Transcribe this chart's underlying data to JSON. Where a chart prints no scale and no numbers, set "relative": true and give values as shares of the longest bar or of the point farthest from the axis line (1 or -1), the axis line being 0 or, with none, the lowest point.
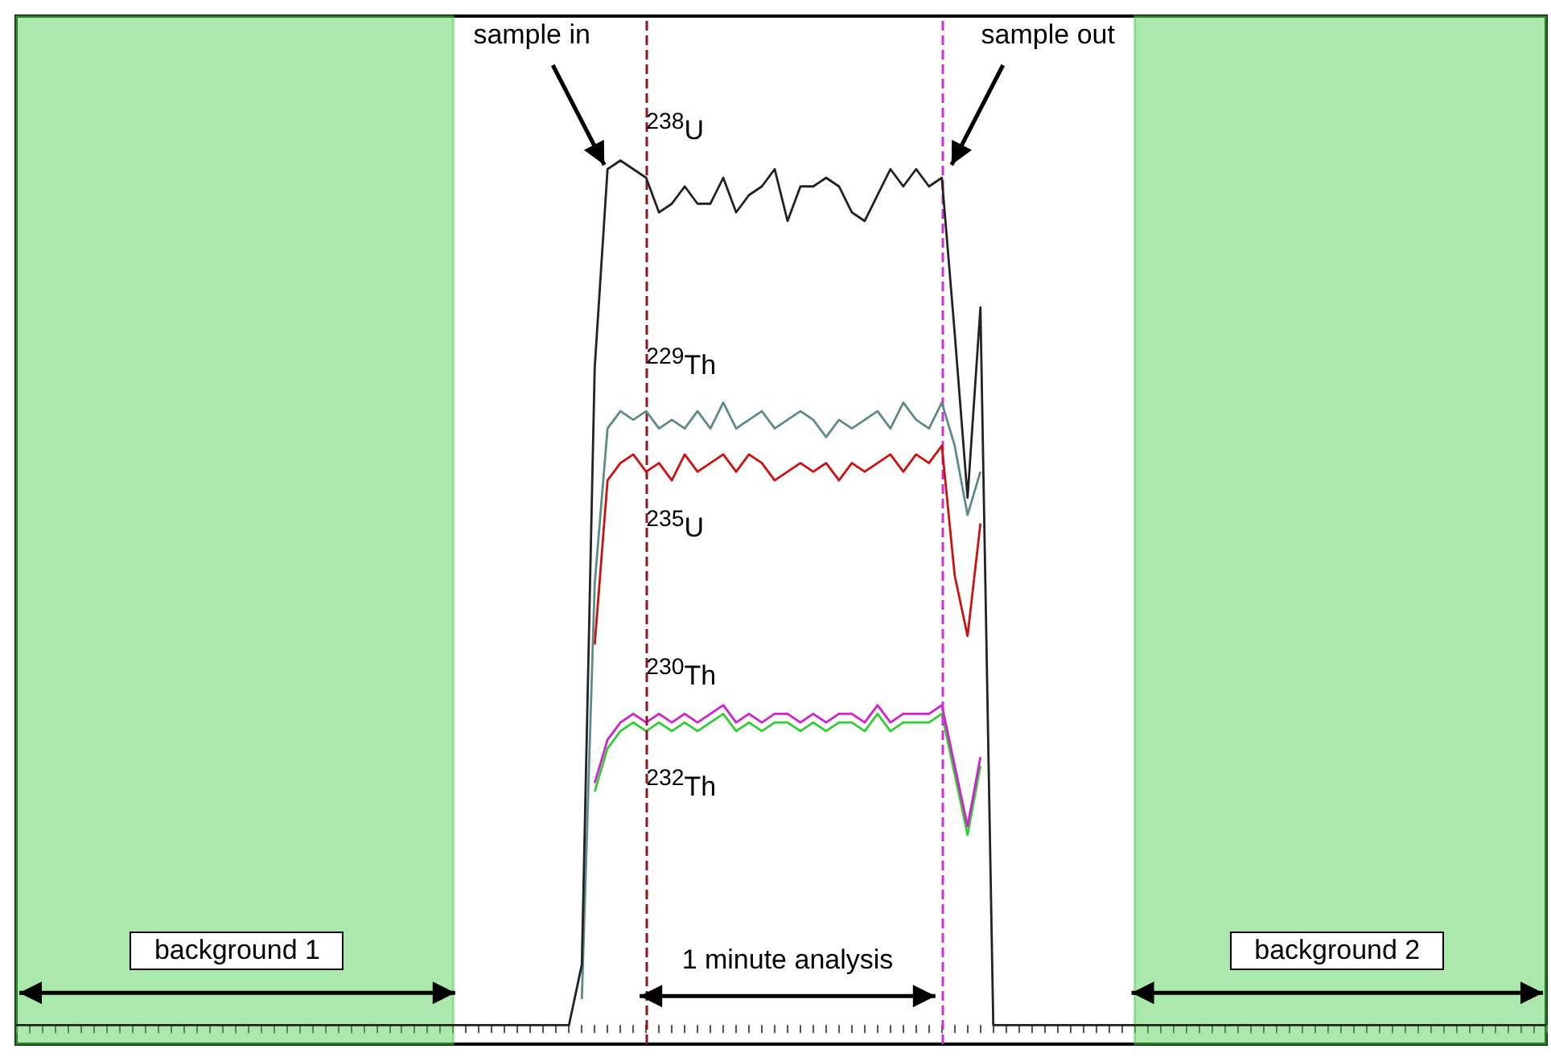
{
  "chart_data": {
    "type": "line",
    "relative": true,
    "categories": [
      null,
      null,
      null,
      null,
      null,
      null,
      null,
      null,
      null,
      null,
      null,
      null,
      null,
      null,
      null,
      null,
      null,
      null,
      null,
      null,
      null,
      null,
      null,
      null,
      null,
      null,
      null,
      null,
      null,
      null,
      null,
      null,
      null,
      null,
      null,
      null,
      null,
      null,
      null,
      null,
      null,
      null,
      null,
      null,
      null,
      null,
      null,
      null,
      null,
      null,
      null,
      null,
      null,
      null,
      null,
      null,
      null,
      null,
      null,
      null,
      null,
      null,
      null,
      null,
      null,
      null,
      null,
      null,
      null,
      null,
      null,
      null,
      null,
      null,
      null,
      null,
      null,
      null,
      null,
      null,
      null,
      null,
      null,
      null,
      null,
      null,
      null,
      null,
      null,
      null,
      null,
      null,
      null,
      null,
      null,
      null,
      null,
      null,
      null,
      null,
      null,
      null,
      null,
      null,
      null,
      null,
      null,
      null,
      null,
      null,
      null,
      null,
      null,
      null,
      null,
      null,
      null,
      null,
      null,
      null
    ],
    "series": [
      {
        "name": "$^{232}$Th",
        "color": "#33cc33",
        "values": [
          null,
          null,
          null,
          null,
          null,
          null,
          null,
          null,
          null,
          null,
          null,
          null,
          null,
          null,
          null,
          null,
          null,
          null,
          null,
          null,
          null,
          null,
          null,
          null,
          null,
          null,
          null,
          null,
          null,
          null,
          null,
          null,
          null,
          null,
          null,
          null,
          null,
          null,
          null,
          null,
          null,
          null,
          null,
          null,
          null,
          0.27,
          0.32,
          0.34,
          0.35,
          0.34,
          0.35,
          0.34,
          0.35,
          0.34,
          0.35,
          0.36,
          0.34,
          0.35,
          0.34,
          0.35,
          0.35,
          0.34,
          0.35,
          0.34,
          0.35,
          0.35,
          0.34,
          0.36,
          0.34,
          0.35,
          0.35,
          0.35,
          0.36,
          0.29,
          0.22,
          0.3,
          null,
          null,
          null,
          null,
          null,
          null,
          null,
          null,
          null,
          null,
          null,
          null,
          null,
          null,
          null,
          null,
          null,
          null,
          null,
          null,
          null,
          null,
          null,
          null,
          null,
          null,
          null,
          null,
          null,
          null,
          null,
          null,
          null,
          null,
          null,
          null,
          null,
          null,
          null,
          null,
          null,
          null,
          null,
          null
        ]
      },
      {
        "name": "$^{230}$Th",
        "color": "#d020d0",
        "values": [
          null,
          null,
          null,
          null,
          null,
          null,
          null,
          null,
          null,
          null,
          null,
          null,
          null,
          null,
          null,
          null,
          null,
          null,
          null,
          null,
          null,
          null,
          null,
          null,
          null,
          null,
          null,
          null,
          null,
          null,
          null,
          null,
          null,
          null,
          null,
          null,
          null,
          null,
          null,
          null,
          null,
          null,
          null,
          null,
          null,
          0.28,
          0.33,
          0.35,
          0.36,
          0.35,
          0.36,
          0.35,
          0.36,
          0.35,
          0.36,
          0.37,
          0.35,
          0.36,
          0.35,
          0.36,
          0.36,
          0.35,
          0.36,
          0.35,
          0.36,
          0.36,
          0.35,
          0.37,
          0.35,
          0.36,
          0.36,
          0.36,
          0.37,
          0.3,
          0.23,
          0.31,
          null,
          null,
          null,
          null,
          null,
          null,
          null,
          null,
          null,
          null,
          null,
          null,
          null,
          null,
          null,
          null,
          null,
          null,
          null,
          null,
          null,
          null,
          null,
          null,
          null,
          null,
          null,
          null,
          null,
          null,
          null,
          null,
          null,
          null,
          null,
          null,
          null,
          null,
          null,
          null,
          null,
          null,
          null,
          null
        ]
      },
      {
        "name": "$^{235}$U",
        "color": "#cc1111",
        "values": [
          null,
          null,
          null,
          null,
          null,
          null,
          null,
          null,
          null,
          null,
          null,
          null,
          null,
          null,
          null,
          null,
          null,
          null,
          null,
          null,
          null,
          null,
          null,
          null,
          null,
          null,
          null,
          null,
          null,
          null,
          null,
          null,
          null,
          null,
          null,
          null,
          null,
          null,
          null,
          null,
          null,
          null,
          null,
          null,
          null,
          0.44,
          0.63,
          0.65,
          0.66,
          0.64,
          0.65,
          0.63,
          0.66,
          0.64,
          0.65,
          0.66,
          0.64,
          0.66,
          0.65,
          0.63,
          0.64,
          0.65,
          0.64,
          0.65,
          0.63,
          0.65,
          0.64,
          0.65,
          0.66,
          0.64,
          0.66,
          0.65,
          0.67,
          0.52,
          0.45,
          0.58,
          null,
          null,
          null,
          null,
          null,
          null,
          null,
          null,
          null,
          null,
          null,
          null,
          null,
          null,
          null,
          null,
          null,
          null,
          null,
          null,
          null,
          null,
          null,
          null,
          null,
          null,
          null,
          null,
          null,
          null,
          null,
          null,
          null,
          null,
          null,
          null,
          null,
          null,
          null,
          null,
          null,
          null,
          null,
          null
        ]
      },
      {
        "name": "$^{229}$Th",
        "color": "#5f8a8a",
        "values": [
          null,
          null,
          null,
          null,
          null,
          null,
          null,
          null,
          null,
          null,
          null,
          null,
          null,
          null,
          null,
          null,
          null,
          null,
          null,
          null,
          null,
          null,
          null,
          null,
          null,
          null,
          null,
          null,
          null,
          null,
          null,
          null,
          null,
          null,
          null,
          null,
          null,
          null,
          null,
          null,
          null,
          null,
          null,
          null,
          0.03,
          0.51,
          0.69,
          0.71,
          0.7,
          0.71,
          0.69,
          0.7,
          0.69,
          0.71,
          0.69,
          0.72,
          0.69,
          0.7,
          0.71,
          0.69,
          0.7,
          0.71,
          0.7,
          0.68,
          0.7,
          0.69,
          0.7,
          0.71,
          0.69,
          0.72,
          0.7,
          0.69,
          0.72,
          0.67,
          0.59,
          0.64,
          null,
          null,
          null,
          null,
          null,
          null,
          null,
          null,
          null,
          null,
          null,
          null,
          null,
          null,
          null,
          null,
          null,
          null,
          null,
          null,
          null,
          null,
          null,
          null,
          null,
          null,
          null,
          null,
          null,
          null,
          null,
          null,
          null,
          null,
          null,
          null,
          null,
          null,
          null,
          null,
          null,
          null,
          null,
          null
        ]
      },
      {
        "name": "$^{238}$U",
        "color": "#222222",
        "values": [
          0,
          0,
          0,
          0,
          0,
          0,
          0,
          0,
          0,
          0,
          0,
          0,
          0,
          0,
          0,
          0,
          0,
          0,
          0,
          0,
          0,
          0,
          0,
          0,
          0,
          0,
          0,
          0,
          0,
          0,
          0,
          0,
          0,
          0,
          0,
          0,
          0,
          0,
          0,
          0,
          0,
          0,
          0,
          0,
          0.07,
          0.76,
          0.99,
          1,
          0.99,
          0.98,
          0.94,
          0.95,
          0.97,
          0.95,
          0.95,
          0.98,
          0.94,
          0.96,
          0.97,
          0.99,
          0.93,
          0.97,
          0.97,
          0.98,
          0.97,
          0.94,
          0.93,
          0.96,
          0.99,
          0.97,
          0.99,
          0.97,
          0.98,
          0.8,
          0.61,
          0.83,
          0,
          0,
          0,
          0,
          0,
          0,
          0,
          0,
          0,
          0,
          0,
          0,
          0,
          0,
          0,
          0,
          0,
          0,
          0,
          0,
          0,
          0,
          0,
          0,
          0,
          0,
          0,
          0,
          0,
          0,
          0,
          0,
          0,
          0,
          0,
          0,
          0,
          0,
          0,
          0,
          0,
          0,
          0,
          0
        ]
      }
    ],
    "annotations": [
      "sample in",
      "sample out",
      "1 minute analysis",
      "background 1",
      "background 2"
    ]
  }
}
